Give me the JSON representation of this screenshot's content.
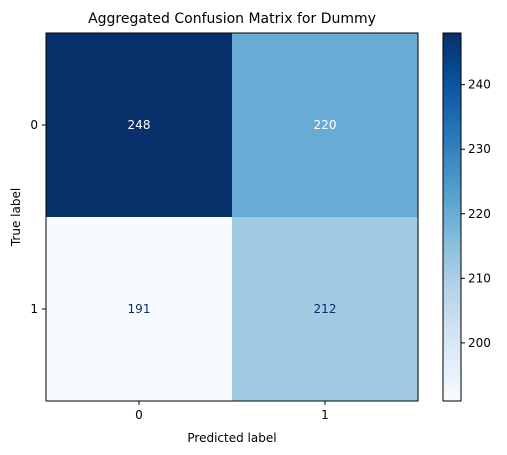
{
  "chart_data": {
    "type": "heatmap",
    "title": "Aggregated Confusion Matrix for Dummy",
    "xlabel": "Predicted label",
    "ylabel": "True label",
    "x_categories": [
      "0",
      "1"
    ],
    "y_categories": [
      "0",
      "1"
    ],
    "values": [
      [
        248,
        220
      ],
      [
        191,
        212
      ]
    ],
    "colormap": "Blues",
    "colorbar": {
      "min": 191,
      "max": 248,
      "ticks": [
        200,
        210,
        220,
        230,
        240
      ],
      "tick_labels": [
        "200",
        "210",
        "220",
        "230",
        "240"
      ]
    },
    "grid": false,
    "colors": {
      "dark_text": "#08306b",
      "light_text": "#ffffff"
    }
  }
}
